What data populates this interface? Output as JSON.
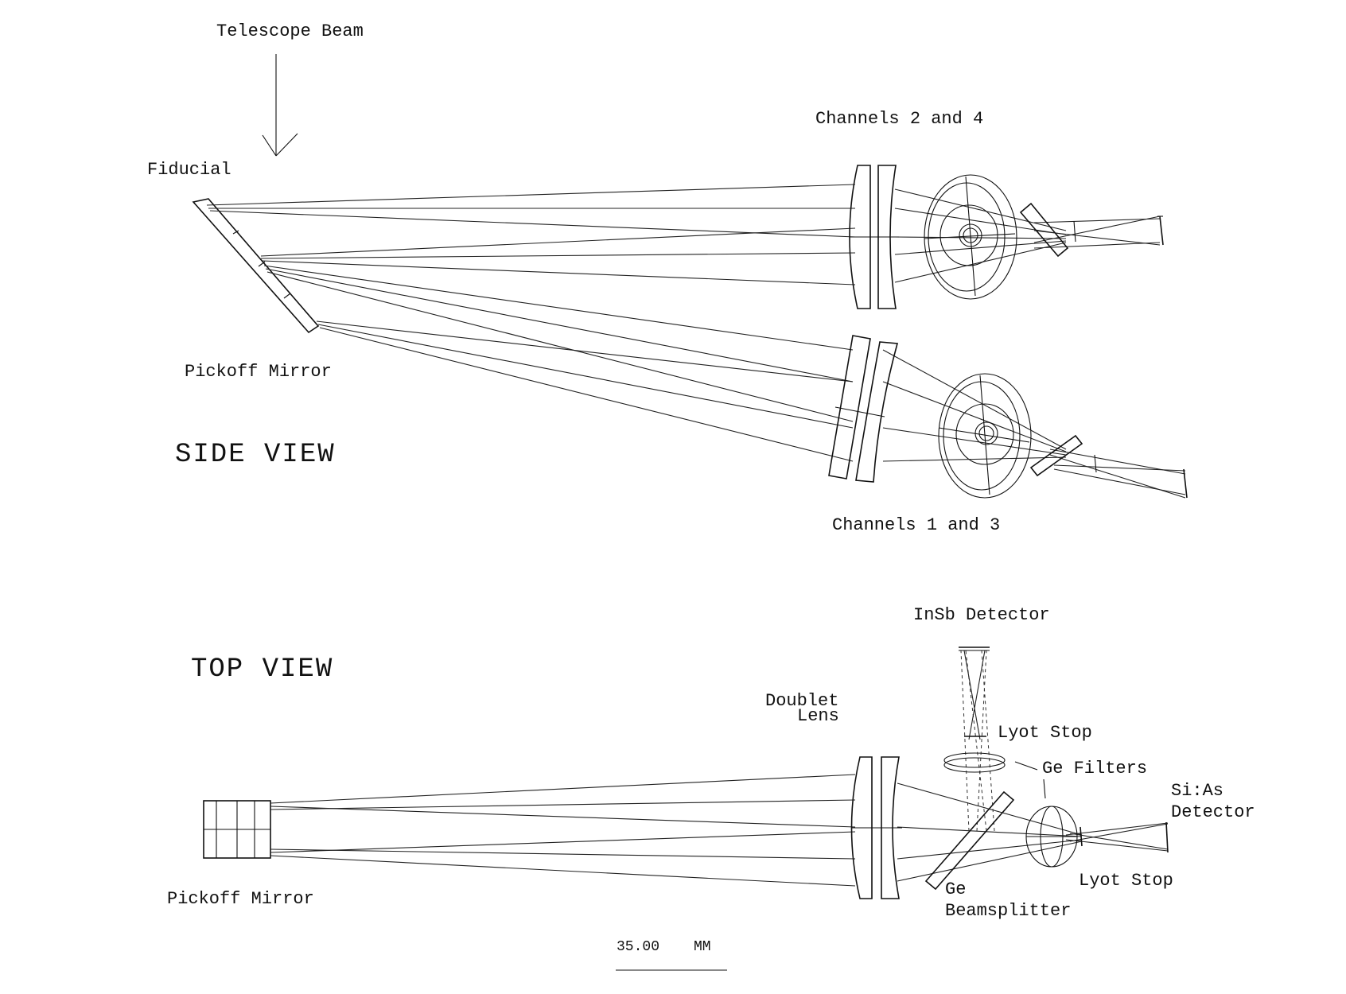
{
  "labels": {
    "telescope_beam": "Telescope Beam",
    "fiducial": "Fiducial",
    "channels_2_4": "Channels 2 and 4",
    "pickoff_mirror_side": "Pickoff Mirror",
    "side_view": "SIDE VIEW",
    "channels_1_3": "Channels 1 and 3",
    "insb_detector": "InSb Detector",
    "top_view": "TOP VIEW",
    "doublet_lens_1": "Doublet",
    "doublet_lens_2": "Lens",
    "lyot_stop_top": "Lyot Stop",
    "ge_filters": "Ge Filters",
    "si_as_1": "Si:As",
    "si_as_2": "Detector",
    "pickoff_mirror_top": "Pickoff Mirror",
    "ge_1": "Ge",
    "ge_2": "Beamsplitter",
    "lyot_stop_bottom": "Lyot Stop",
    "scale_value": "35.00",
    "scale_unit": "MM"
  }
}
